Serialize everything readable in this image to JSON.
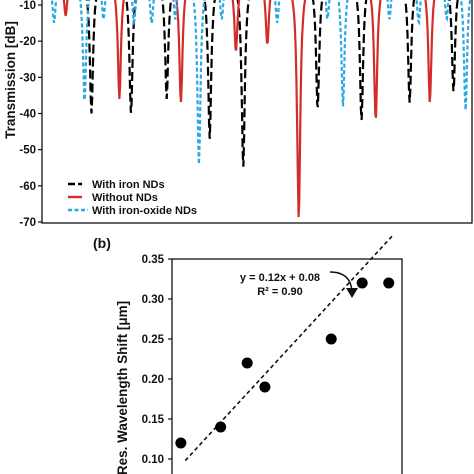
{
  "chart_data": [
    {
      "type": "line",
      "panel": "",
      "xlabel": "",
      "ylabel": "Transmission [dB]",
      "ylim": [
        -70,
        -10
      ],
      "yticks": [
        "-10",
        "-20",
        "-30",
        "-40",
        "-50",
        "-60",
        "-70"
      ],
      "grid": false,
      "legend_position": "bottom-left",
      "series": [
        {
          "name": "With iron NDs",
          "color": "#000000",
          "dash": "long-dash",
          "dips": [
            {
              "x": 0.115,
              "depth": -40
            },
            {
              "x": 0.207,
              "depth": -40
            },
            {
              "x": 0.29,
              "depth": -36
            },
            {
              "x": 0.39,
              "depth": -47
            },
            {
              "x": 0.468,
              "depth": -55
            },
            {
              "x": 0.641,
              "depth": -39
            },
            {
              "x": 0.743,
              "depth": -42
            },
            {
              "x": 0.855,
              "depth": -37
            },
            {
              "x": 0.957,
              "depth": -34
            }
          ]
        },
        {
          "name": "Without NDs",
          "color": "#d62b2b",
          "dash": "solid",
          "dips": [
            {
              "x": 0.055,
              "depth": -13
            },
            {
              "x": 0.18,
              "depth": -36
            },
            {
              "x": 0.323,
              "depth": -37
            },
            {
              "x": 0.451,
              "depth": -23
            },
            {
              "x": 0.524,
              "depth": -21
            },
            {
              "x": 0.597,
              "depth": -69
            },
            {
              "x": 0.776,
              "depth": -42
            },
            {
              "x": 0.902,
              "depth": -37
            }
          ]
        },
        {
          "name": "With iron-oxide NDs",
          "color": "#2aa8e0",
          "dash": "short-dash",
          "dips": [
            {
              "x": 0.028,
              "depth": -15
            },
            {
              "x": 0.099,
              "depth": -37
            },
            {
              "x": 0.143,
              "depth": -14
            },
            {
              "x": 0.214,
              "depth": -15
            },
            {
              "x": 0.255,
              "depth": -15
            },
            {
              "x": 0.31,
              "depth": -14
            },
            {
              "x": 0.365,
              "depth": -54
            },
            {
              "x": 0.418,
              "depth": -14
            },
            {
              "x": 0.547,
              "depth": -15
            },
            {
              "x": 0.664,
              "depth": -14
            },
            {
              "x": 0.7,
              "depth": -38
            },
            {
              "x": 0.808,
              "depth": -14
            },
            {
              "x": 0.876,
              "depth": -15
            },
            {
              "x": 0.941,
              "depth": -14
            },
            {
              "x": 0.985,
              "depth": -39
            }
          ]
        }
      ]
    },
    {
      "type": "scatter",
      "panel": "(b)",
      "xlabel": "",
      "ylabel": "Res. Wavelength Shift [μm]",
      "ylim": [
        0.08,
        0.35
      ],
      "xlim": [
        0.0,
        2.6
      ],
      "yticks": [
        "0.35",
        "0.30",
        "0.25",
        "0.20",
        "0.15",
        "0.10"
      ],
      "grid": false,
      "points": [
        {
          "x": 0.1,
          "y": 0.12
        },
        {
          "x": 0.55,
          "y": 0.14
        },
        {
          "x": 0.85,
          "y": 0.22
        },
        {
          "x": 1.05,
          "y": 0.19
        },
        {
          "x": 1.8,
          "y": 0.25
        },
        {
          "x": 2.15,
          "y": 0.32
        },
        {
          "x": 2.45,
          "y": 0.32
        }
      ],
      "fit": {
        "slope": 0.12,
        "intercept": 0.08,
        "x_range": [
          0.15,
          2.5
        ],
        "style": "dashed"
      },
      "annotation": {
        "equation": "y = 0.12x + 0.08",
        "r2": "R² = 0.90"
      }
    }
  ]
}
